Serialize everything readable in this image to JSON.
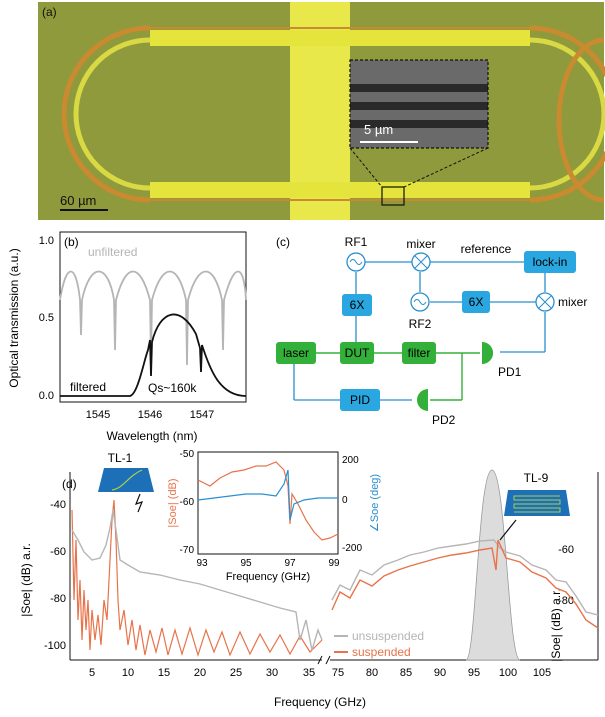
{
  "panel_a": {
    "label": "(a)",
    "scale_main": "60 µm",
    "scale_inset": "5 µm"
  },
  "panel_b": {
    "label": "(b)",
    "ylabel": "Optical transmission (a.u.)",
    "xlabel": "Wavelength (nm)",
    "yticks": [
      "0.0",
      "0.5",
      "1.0"
    ],
    "xticks": [
      "1545",
      "1546",
      "1547"
    ],
    "series_unfiltered": "unfiltered",
    "series_filtered": "filtered",
    "annotation": "Qs~160k"
  },
  "panel_c": {
    "label": "(c)",
    "nodes": {
      "rf1": "RF1",
      "rf2": "RF2",
      "mixer_top": "mixer",
      "mixer_right": "mixer",
      "reference": "reference",
      "lockin": "lock-in",
      "mult1": "6X",
      "mult2": "6X",
      "laser": "laser",
      "dut": "DUT",
      "filter": "filter",
      "pd1": "PD1",
      "pd2": "PD2",
      "pid": "PID"
    }
  },
  "panel_d": {
    "label": "(d)",
    "ylabel_left": "|Soe| (dB) a.r.",
    "ylabel_right": "|Soe| (dB) a.r.",
    "xlabel": "Frequency (GHz)",
    "left_yticks": [
      "-40",
      "-60",
      "-80",
      "-100"
    ],
    "right_yticks": [
      "-60",
      "-80"
    ],
    "xticks_left": [
      "5",
      "10",
      "15",
      "20",
      "25",
      "30",
      "35"
    ],
    "xticks_right": [
      "75",
      "80",
      "85",
      "90",
      "95",
      "100",
      "105"
    ],
    "legend_unsuspended": "unsuspended",
    "legend_suspended": "suspended",
    "tl1": "TL-1",
    "tl9": "TL-9",
    "inset": {
      "xlabel": "Frequency (GHz)",
      "ylabel_left": "|Soe| (dB)",
      "ylabel_right": "∠Soe (deg)",
      "xticks": [
        "93",
        "95",
        "97",
        "99"
      ],
      "yticks_left": [
        "-50",
        "-60",
        "-70"
      ],
      "yticks_right": [
        "200",
        "0",
        "-200"
      ]
    }
  },
  "colors": {
    "orange": "#e8734a",
    "gray": "#b5b5b5",
    "blue": "#2a8fd0",
    "box_blue": "#2aa7e0",
    "green": "#33b03a",
    "gold": "#e6e63a"
  }
}
